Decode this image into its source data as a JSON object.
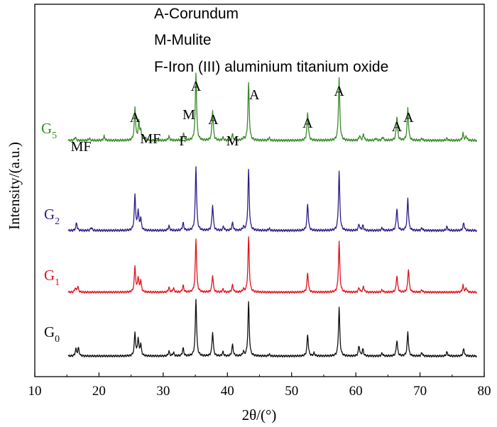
{
  "chart_data": {
    "type": "line",
    "xlabel": "2θ/(°)",
    "ylabel": "Intensity/(a.u.)",
    "xlim": [
      10,
      80
    ],
    "x_ticks": [
      10,
      20,
      30,
      40,
      50,
      60,
      70,
      80
    ],
    "grid": false,
    "legend": {
      "placement": "top-center",
      "entries": [
        "A-Corundum",
        "M-Mulite",
        "F-Iron (III) aluminium titanium oxide"
      ]
    },
    "series": [
      {
        "name": "G5",
        "label_main": "G",
        "label_sub": "5",
        "color": "#3a8a2a",
        "baseline": 0,
        "peaks": [
          [
            16.3,
            0.05
          ],
          [
            18.5,
            0.03
          ],
          [
            20.8,
            0.06
          ],
          [
            25.6,
            0.48
          ],
          [
            26.2,
            0.26
          ],
          [
            26.5,
            0.14
          ],
          [
            27.2,
            0.04
          ],
          [
            30.9,
            0.06
          ],
          [
            33.2,
            0.1
          ],
          [
            35.1,
            1.0
          ],
          [
            37.7,
            0.45
          ],
          [
            39.3,
            0.04
          ],
          [
            40.8,
            0.09
          ],
          [
            42.5,
            0.03
          ],
          [
            43.3,
            0.85
          ],
          [
            46.5,
            0.04
          ],
          [
            52.5,
            0.42
          ],
          [
            57.4,
            0.92
          ],
          [
            60.6,
            0.07
          ],
          [
            61.2,
            0.09
          ],
          [
            63.1,
            0.03
          ],
          [
            64.2,
            0.05
          ],
          [
            66.4,
            0.36
          ],
          [
            68.1,
            0.48
          ],
          [
            70.3,
            0.03
          ],
          [
            74.2,
            0.03
          ],
          [
            76.7,
            0.1
          ],
          [
            77.2,
            0.06
          ]
        ]
      },
      {
        "name": "G2",
        "label_main": "G",
        "label_sub": "2",
        "color": "#2c1f8a",
        "baseline": 0,
        "peaks": [
          [
            16.5,
            0.12
          ],
          [
            18.8,
            0.05
          ],
          [
            25.6,
            0.55
          ],
          [
            26.1,
            0.3
          ],
          [
            26.5,
            0.18
          ],
          [
            30.9,
            0.07
          ],
          [
            33.1,
            0.12
          ],
          [
            35.1,
            1.0
          ],
          [
            37.7,
            0.4
          ],
          [
            39.4,
            0.06
          ],
          [
            40.8,
            0.12
          ],
          [
            42.5,
            0.05
          ],
          [
            43.3,
            0.95
          ],
          [
            46.5,
            0.03
          ],
          [
            52.5,
            0.42
          ],
          [
            57.4,
            0.92
          ],
          [
            60.5,
            0.1
          ],
          [
            61.1,
            0.08
          ],
          [
            64.1,
            0.04
          ],
          [
            66.4,
            0.35
          ],
          [
            68.1,
            0.5
          ],
          [
            70.3,
            0.04
          ],
          [
            74.2,
            0.06
          ],
          [
            76.8,
            0.12
          ]
        ]
      },
      {
        "name": "G1",
        "label_main": "G",
        "label_sub": "1",
        "color": "#e0141e",
        "baseline": 0,
        "peaks": [
          [
            16.3,
            0.07
          ],
          [
            16.7,
            0.1
          ],
          [
            25.6,
            0.45
          ],
          [
            26.1,
            0.25
          ],
          [
            26.5,
            0.2
          ],
          [
            30.9,
            0.08
          ],
          [
            31.6,
            0.07
          ],
          [
            33.1,
            0.12
          ],
          [
            35.1,
            0.95
          ],
          [
            37.7,
            0.3
          ],
          [
            39.3,
            0.05
          ],
          [
            40.8,
            0.13
          ],
          [
            42.5,
            0.05
          ],
          [
            43.3,
            0.98
          ],
          [
            52.5,
            0.35
          ],
          [
            57.4,
            0.9
          ],
          [
            60.5,
            0.08
          ],
          [
            61.2,
            0.1
          ],
          [
            64.1,
            0.04
          ],
          [
            66.4,
            0.3
          ],
          [
            68.2,
            0.42
          ],
          [
            70.3,
            0.04
          ],
          [
            76.7,
            0.12
          ],
          [
            77.2,
            0.07
          ]
        ]
      },
      {
        "name": "G0",
        "label_main": "G",
        "label_sub": "0",
        "color": "#111111",
        "baseline": 0,
        "peaks": [
          [
            16.4,
            0.12
          ],
          [
            16.8,
            0.14
          ],
          [
            25.6,
            0.4
          ],
          [
            26.1,
            0.3
          ],
          [
            26.5,
            0.2
          ],
          [
            30.9,
            0.08
          ],
          [
            31.6,
            0.06
          ],
          [
            33.1,
            0.14
          ],
          [
            35.1,
            1.0
          ],
          [
            37.7,
            0.42
          ],
          [
            39.3,
            0.07
          ],
          [
            40.8,
            0.2
          ],
          [
            42.5,
            0.07
          ],
          [
            43.3,
            0.95
          ],
          [
            46.5,
            0.03
          ],
          [
            52.5,
            0.38
          ],
          [
            53.5,
            0.05
          ],
          [
            57.4,
            0.85
          ],
          [
            60.5,
            0.18
          ],
          [
            61.1,
            0.12
          ],
          [
            64.1,
            0.05
          ],
          [
            66.4,
            0.28
          ],
          [
            68.1,
            0.42
          ],
          [
            70.3,
            0.06
          ],
          [
            74.2,
            0.07
          ],
          [
            76.8,
            0.13
          ]
        ]
      }
    ],
    "peak_annotations": [
      {
        "text": "MF",
        "x": 17.2
      },
      {
        "text": "A",
        "x": 25.6
      },
      {
        "text": "MF",
        "x": 28.0
      },
      {
        "text": "F",
        "x": 33.1
      },
      {
        "text": "M",
        "x": 34.0
      },
      {
        "text": "A",
        "x": 35.1
      },
      {
        "text": "A",
        "x": 37.8
      },
      {
        "text": "M",
        "x": 40.8
      },
      {
        "text": "A",
        "x": 44.2
      },
      {
        "text": "A",
        "x": 52.5
      },
      {
        "text": "A",
        "x": 57.4
      },
      {
        "text": "A",
        "x": 66.4
      },
      {
        "text": "A",
        "x": 68.2
      }
    ]
  }
}
